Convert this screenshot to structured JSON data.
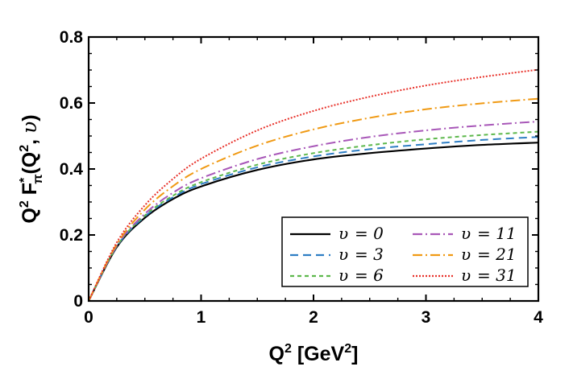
{
  "chart_data": {
    "type": "line",
    "title": "",
    "xlabel": "Q² [GeV²]",
    "ylabel": "Q² F*π(Q², υ)",
    "xlabel_parts": {
      "base": "Q",
      "sup1": "2",
      "rest": " [GeV",
      "sup2": "2",
      "close": "]"
    },
    "ylabel_parts": {
      "q": "Q",
      "q_sup": "2",
      "f": " F",
      "f_sub": "π",
      "f_sup": "*",
      "args_open": "(Q",
      "args_sup": "2",
      "args_rest": ", ",
      "var": "υ",
      "args_close": ")"
    },
    "xlim": [
      0,
      4
    ],
    "ylim": [
      0,
      0.8
    ],
    "xticks": [
      0,
      1,
      2,
      3,
      4
    ],
    "xtick_labels": [
      "0",
      "1",
      "2",
      "3",
      "4"
    ],
    "yticks": [
      0,
      0.2,
      0.4,
      0.6,
      0.8
    ],
    "ytick_labels": [
      "0",
      "0.2",
      "0.4",
      "0.6",
      "0.8"
    ],
    "grid": false,
    "legend_position": "bottom-right",
    "series": [
      {
        "name": "υ = 0",
        "legend_var": "υ",
        "legend_value": "= 0",
        "color": "#000000",
        "dash": "",
        "x": [
          0,
          0.25,
          0.5,
          0.75,
          1,
          1.5,
          2,
          2.5,
          3,
          3.5,
          4
        ],
        "y": [
          0,
          0.163,
          0.252,
          0.309,
          0.347,
          0.397,
          0.429,
          0.448,
          0.462,
          0.473,
          0.48
        ]
      },
      {
        "name": "υ = 3",
        "legend_var": "υ",
        "legend_value": "= 3",
        "color": "#2e7ec4",
        "dash": "10,6",
        "x": [
          0,
          0.25,
          0.5,
          0.75,
          1,
          1.5,
          2,
          2.5,
          3,
          3.5,
          4
        ],
        "y": [
          0,
          0.165,
          0.256,
          0.314,
          0.354,
          0.405,
          0.438,
          0.46,
          0.475,
          0.488,
          0.497
        ]
      },
      {
        "name": "υ = 6",
        "legend_var": "υ",
        "legend_value": "= 6",
        "color": "#5db84c",
        "dash": "5,4",
        "x": [
          0,
          0.25,
          0.5,
          0.75,
          1,
          1.5,
          2,
          2.5,
          3,
          3.5,
          4
        ],
        "y": [
          0,
          0.166,
          0.259,
          0.319,
          0.36,
          0.413,
          0.448,
          0.472,
          0.49,
          0.503,
          0.513
        ]
      },
      {
        "name": "υ = 11",
        "legend_var": "υ",
        "legend_value": "= 11",
        "color": "#a857b8",
        "dash": "12,4,2,4",
        "x": [
          0,
          0.25,
          0.5,
          0.75,
          1,
          1.5,
          2,
          2.5,
          3,
          3.5,
          4
        ],
        "y": [
          0,
          0.168,
          0.264,
          0.328,
          0.372,
          0.43,
          0.469,
          0.497,
          0.517,
          0.532,
          0.544
        ]
      },
      {
        "name": "υ = 21",
        "legend_var": "υ",
        "legend_value": "= 21",
        "color": "#f09a14",
        "dash": "12,4,2,4",
        "x": [
          0,
          0.25,
          0.5,
          0.75,
          1,
          1.5,
          2,
          2.5,
          3,
          3.5,
          4
        ],
        "y": [
          0,
          0.172,
          0.277,
          0.348,
          0.4,
          0.471,
          0.52,
          0.555,
          0.581,
          0.599,
          0.613
        ]
      },
      {
        "name": "υ = 31",
        "legend_var": "υ",
        "legend_value": "= 31",
        "color": "#e8322b",
        "dash": "2,2",
        "x": [
          0,
          0.25,
          0.5,
          0.75,
          1,
          1.5,
          2,
          2.5,
          3,
          3.5,
          4
        ],
        "y": [
          0,
          0.177,
          0.29,
          0.37,
          0.431,
          0.517,
          0.576,
          0.619,
          0.653,
          0.679,
          0.701
        ]
      }
    ]
  }
}
